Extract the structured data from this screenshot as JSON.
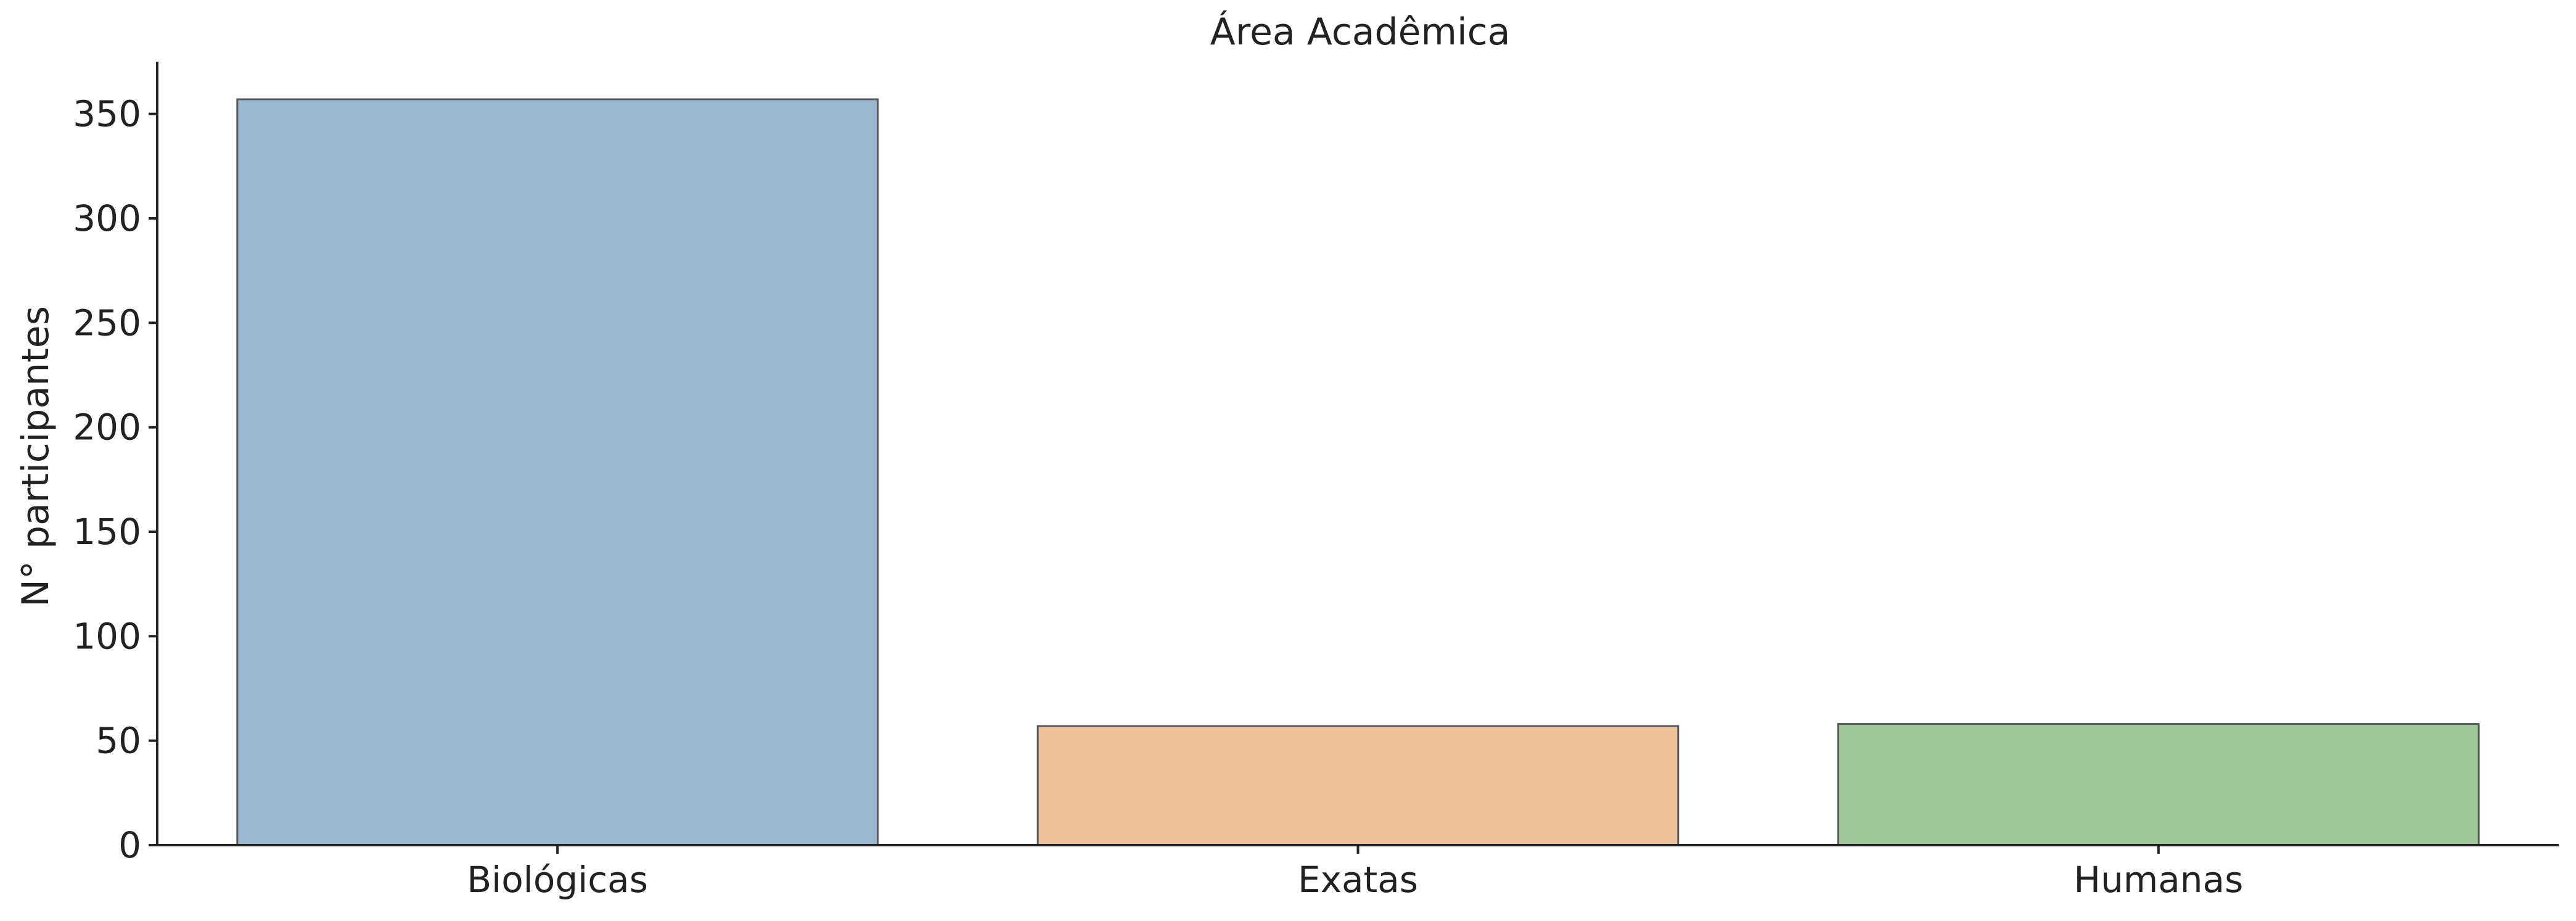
{
  "chart_data": {
    "type": "bar",
    "title": "Área Acadêmica",
    "xlabel": "",
    "ylabel": "N° participantes",
    "categories": [
      "Biológicas",
      "Exatas",
      "Humanas"
    ],
    "values": [
      357,
      57,
      58
    ],
    "colors": [
      "#9ab8cf",
      "#f0c096",
      "#9ec89a"
    ],
    "ylim": [
      0,
      375
    ],
    "yticks": [
      0,
      50,
      100,
      150,
      200,
      250,
      300,
      350
    ],
    "grid": false,
    "legend": "none"
  }
}
